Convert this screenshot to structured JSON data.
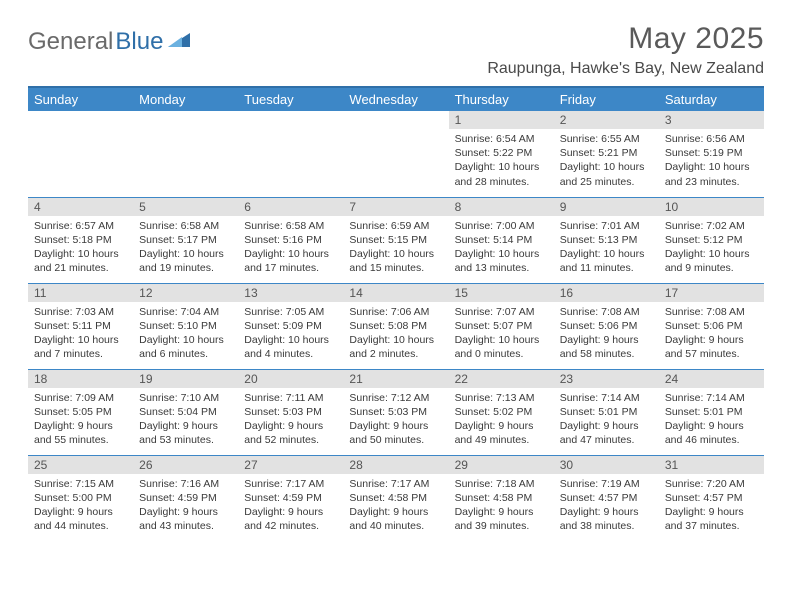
{
  "logo": {
    "general": "General",
    "blue": "Blue"
  },
  "title": "May 2025",
  "location": "Raupunga, Hawke's Bay, New Zealand",
  "colors": {
    "headerBlue": "#3d87c7",
    "accentBlue": "#2f6fa8",
    "dayBg": "#e2e2e2",
    "logoGray": "#6a6a6a",
    "textGray": "#3a3a3a"
  },
  "weekdays": [
    "Sunday",
    "Monday",
    "Tuesday",
    "Wednesday",
    "Thursday",
    "Friday",
    "Saturday"
  ],
  "weeks": [
    [
      {
        "empty": true
      },
      {
        "empty": true
      },
      {
        "empty": true
      },
      {
        "empty": true
      },
      {
        "num": "1",
        "sunrise": "Sunrise: 6:54 AM",
        "sunset": "Sunset: 5:22 PM",
        "daylight": "Daylight: 10 hours and 28 minutes."
      },
      {
        "num": "2",
        "sunrise": "Sunrise: 6:55 AM",
        "sunset": "Sunset: 5:21 PM",
        "daylight": "Daylight: 10 hours and 25 minutes."
      },
      {
        "num": "3",
        "sunrise": "Sunrise: 6:56 AM",
        "sunset": "Sunset: 5:19 PM",
        "daylight": "Daylight: 10 hours and 23 minutes."
      }
    ],
    [
      {
        "num": "4",
        "sunrise": "Sunrise: 6:57 AM",
        "sunset": "Sunset: 5:18 PM",
        "daylight": "Daylight: 10 hours and 21 minutes."
      },
      {
        "num": "5",
        "sunrise": "Sunrise: 6:58 AM",
        "sunset": "Sunset: 5:17 PM",
        "daylight": "Daylight: 10 hours and 19 minutes."
      },
      {
        "num": "6",
        "sunrise": "Sunrise: 6:58 AM",
        "sunset": "Sunset: 5:16 PM",
        "daylight": "Daylight: 10 hours and 17 minutes."
      },
      {
        "num": "7",
        "sunrise": "Sunrise: 6:59 AM",
        "sunset": "Sunset: 5:15 PM",
        "daylight": "Daylight: 10 hours and 15 minutes."
      },
      {
        "num": "8",
        "sunrise": "Sunrise: 7:00 AM",
        "sunset": "Sunset: 5:14 PM",
        "daylight": "Daylight: 10 hours and 13 minutes."
      },
      {
        "num": "9",
        "sunrise": "Sunrise: 7:01 AM",
        "sunset": "Sunset: 5:13 PM",
        "daylight": "Daylight: 10 hours and 11 minutes."
      },
      {
        "num": "10",
        "sunrise": "Sunrise: 7:02 AM",
        "sunset": "Sunset: 5:12 PM",
        "daylight": "Daylight: 10 hours and 9 minutes."
      }
    ],
    [
      {
        "num": "11",
        "sunrise": "Sunrise: 7:03 AM",
        "sunset": "Sunset: 5:11 PM",
        "daylight": "Daylight: 10 hours and 7 minutes."
      },
      {
        "num": "12",
        "sunrise": "Sunrise: 7:04 AM",
        "sunset": "Sunset: 5:10 PM",
        "daylight": "Daylight: 10 hours and 6 minutes."
      },
      {
        "num": "13",
        "sunrise": "Sunrise: 7:05 AM",
        "sunset": "Sunset: 5:09 PM",
        "daylight": "Daylight: 10 hours and 4 minutes."
      },
      {
        "num": "14",
        "sunrise": "Sunrise: 7:06 AM",
        "sunset": "Sunset: 5:08 PM",
        "daylight": "Daylight: 10 hours and 2 minutes."
      },
      {
        "num": "15",
        "sunrise": "Sunrise: 7:07 AM",
        "sunset": "Sunset: 5:07 PM",
        "daylight": "Daylight: 10 hours and 0 minutes."
      },
      {
        "num": "16",
        "sunrise": "Sunrise: 7:08 AM",
        "sunset": "Sunset: 5:06 PM",
        "daylight": "Daylight: 9 hours and 58 minutes."
      },
      {
        "num": "17",
        "sunrise": "Sunrise: 7:08 AM",
        "sunset": "Sunset: 5:06 PM",
        "daylight": "Daylight: 9 hours and 57 minutes."
      }
    ],
    [
      {
        "num": "18",
        "sunrise": "Sunrise: 7:09 AM",
        "sunset": "Sunset: 5:05 PM",
        "daylight": "Daylight: 9 hours and 55 minutes."
      },
      {
        "num": "19",
        "sunrise": "Sunrise: 7:10 AM",
        "sunset": "Sunset: 5:04 PM",
        "daylight": "Daylight: 9 hours and 53 minutes."
      },
      {
        "num": "20",
        "sunrise": "Sunrise: 7:11 AM",
        "sunset": "Sunset: 5:03 PM",
        "daylight": "Daylight: 9 hours and 52 minutes."
      },
      {
        "num": "21",
        "sunrise": "Sunrise: 7:12 AM",
        "sunset": "Sunset: 5:03 PM",
        "daylight": "Daylight: 9 hours and 50 minutes."
      },
      {
        "num": "22",
        "sunrise": "Sunrise: 7:13 AM",
        "sunset": "Sunset: 5:02 PM",
        "daylight": "Daylight: 9 hours and 49 minutes."
      },
      {
        "num": "23",
        "sunrise": "Sunrise: 7:14 AM",
        "sunset": "Sunset: 5:01 PM",
        "daylight": "Daylight: 9 hours and 47 minutes."
      },
      {
        "num": "24",
        "sunrise": "Sunrise: 7:14 AM",
        "sunset": "Sunset: 5:01 PM",
        "daylight": "Daylight: 9 hours and 46 minutes."
      }
    ],
    [
      {
        "num": "25",
        "sunrise": "Sunrise: 7:15 AM",
        "sunset": "Sunset: 5:00 PM",
        "daylight": "Daylight: 9 hours and 44 minutes."
      },
      {
        "num": "26",
        "sunrise": "Sunrise: 7:16 AM",
        "sunset": "Sunset: 4:59 PM",
        "daylight": "Daylight: 9 hours and 43 minutes."
      },
      {
        "num": "27",
        "sunrise": "Sunrise: 7:17 AM",
        "sunset": "Sunset: 4:59 PM",
        "daylight": "Daylight: 9 hours and 42 minutes."
      },
      {
        "num": "28",
        "sunrise": "Sunrise: 7:17 AM",
        "sunset": "Sunset: 4:58 PM",
        "daylight": "Daylight: 9 hours and 40 minutes."
      },
      {
        "num": "29",
        "sunrise": "Sunrise: 7:18 AM",
        "sunset": "Sunset: 4:58 PM",
        "daylight": "Daylight: 9 hours and 39 minutes."
      },
      {
        "num": "30",
        "sunrise": "Sunrise: 7:19 AM",
        "sunset": "Sunset: 4:57 PM",
        "daylight": "Daylight: 9 hours and 38 minutes."
      },
      {
        "num": "31",
        "sunrise": "Sunrise: 7:20 AM",
        "sunset": "Sunset: 4:57 PM",
        "daylight": "Daylight: 9 hours and 37 minutes."
      }
    ]
  ]
}
